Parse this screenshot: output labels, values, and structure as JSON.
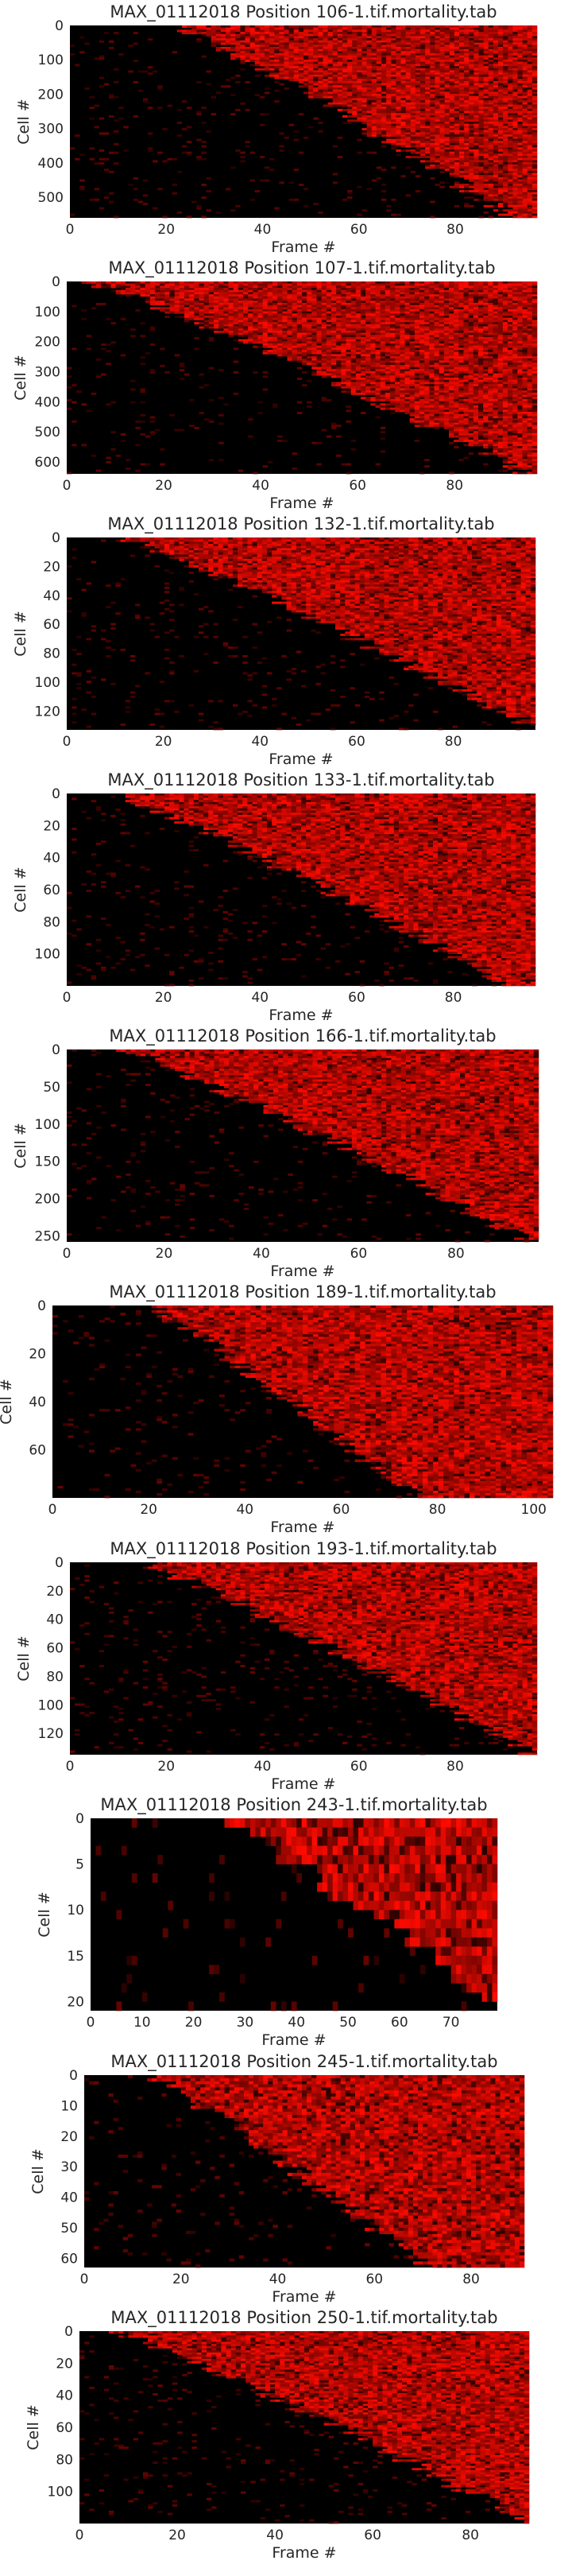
{
  "chart_data": [
    {
      "type": "heatmap",
      "title": "MAX_01112018 Position 106-1.tif.mortality.tab",
      "xlabel": "Frame #",
      "ylabel": "Cell #",
      "xlim": [
        0,
        97
      ],
      "ylim": [
        0,
        560
      ],
      "xticks": [
        0,
        20,
        40,
        60,
        80
      ],
      "yticks": [
        0,
        100,
        200,
        300,
        400,
        500
      ],
      "colorscale": [
        "#000000",
        "#ff0000"
      ],
      "grid": false,
      "onset_frames": [
        22,
        92
      ],
      "xtick_labels": [
        "0",
        "20",
        "40",
        "60",
        "80"
      ],
      "ytick_labels": [
        "0",
        "100",
        "200",
        "300",
        "400",
        "500"
      ]
    },
    {
      "type": "heatmap",
      "title": "MAX_01112018 Position 107-1.tif.mortality.tab",
      "xlabel": "Frame #",
      "ylabel": "Cell #",
      "xlim": [
        0,
        97
      ],
      "ylim": [
        0,
        640
      ],
      "xticks": [
        0,
        20,
        40,
        60,
        80
      ],
      "yticks": [
        0,
        100,
        200,
        300,
        400,
        500,
        600
      ],
      "colorscale": [
        "#000000",
        "#ff0000"
      ],
      "grid": false,
      "onset_frames": [
        5,
        95
      ],
      "xtick_labels": [
        "0",
        "20",
        "40",
        "60",
        "80"
      ],
      "ytick_labels": [
        "0",
        "100",
        "200",
        "300",
        "400",
        "500",
        "600"
      ]
    },
    {
      "type": "heatmap",
      "title": "MAX_01112018 Position 132-1.tif.mortality.tab",
      "xlabel": "Frame #",
      "ylabel": "Cell #",
      "xlim": [
        0,
        97
      ],
      "ylim": [
        0,
        133
      ],
      "xticks": [
        0,
        20,
        40,
        60,
        80
      ],
      "yticks": [
        0,
        20,
        40,
        60,
        80,
        100,
        120
      ],
      "colorscale": [
        "#000000",
        "#ff0000"
      ],
      "grid": false,
      "onset_frames": [
        12,
        97
      ],
      "xtick_labels": [
        "0",
        "20",
        "40",
        "60",
        "80"
      ],
      "ytick_labels": [
        "0",
        "20",
        "40",
        "60",
        "80",
        "100",
        "120"
      ]
    },
    {
      "type": "heatmap",
      "title": "MAX_01112018 Position 133-1.tif.mortality.tab",
      "xlabel": "Frame #",
      "ylabel": "Cell #",
      "xlim": [
        0,
        97
      ],
      "ylim": [
        0,
        120
      ],
      "xticks": [
        0,
        20,
        40,
        60,
        80
      ],
      "yticks": [
        0,
        20,
        40,
        60,
        80,
        100
      ],
      "colorscale": [
        "#000000",
        "#ff0000"
      ],
      "grid": false,
      "onset_frames": [
        10,
        92
      ],
      "xtick_labels": [
        "0",
        "20",
        "40",
        "60",
        "80"
      ],
      "ytick_labels": [
        "0",
        "20",
        "40",
        "60",
        "80",
        "100"
      ]
    },
    {
      "type": "heatmap",
      "title": "MAX_01112018 Position 166-1.tif.mortality.tab",
      "xlabel": "Frame #",
      "ylabel": "Cell #",
      "xlim": [
        0,
        97
      ],
      "ylim": [
        0,
        258
      ],
      "xticks": [
        0,
        20,
        40,
        60,
        80
      ],
      "yticks": [
        0,
        50,
        100,
        150,
        200,
        250
      ],
      "colorscale": [
        "#000000",
        "#ff0000"
      ],
      "grid": false,
      "onset_frames": [
        12,
        95
      ],
      "xtick_labels": [
        "0",
        "20",
        "40",
        "60",
        "80"
      ],
      "ytick_labels": [
        "0",
        "50",
        "100",
        "150",
        "200",
        "250"
      ]
    },
    {
      "type": "heatmap",
      "title": "MAX_01112018 Position 189-1.tif.mortality.tab",
      "xlabel": "Frame #",
      "ylabel": "Cell #",
      "xlim": [
        0,
        104
      ],
      "ylim": [
        0,
        80
      ],
      "xticks": [
        0,
        20,
        40,
        60,
        80,
        100
      ],
      "yticks": [
        0,
        20,
        40,
        60
      ],
      "colorscale": [
        "#000000",
        "#ff0000"
      ],
      "grid": false,
      "onset_frames": [
        20,
        75
      ],
      "xtick_labels": [
        "0",
        "20",
        "40",
        "60",
        "80",
        "100"
      ],
      "ytick_labels": [
        "0",
        "20",
        "40",
        "60"
      ]
    },
    {
      "type": "heatmap",
      "title": "MAX_01112018 Position 193-1.tif.mortality.tab",
      "xlabel": "Frame #",
      "ylabel": "Cell #",
      "xlim": [
        0,
        97
      ],
      "ylim": [
        0,
        135
      ],
      "xticks": [
        0,
        20,
        40,
        60,
        80
      ],
      "yticks": [
        0,
        20,
        40,
        60,
        80,
        100,
        120
      ],
      "colorscale": [
        "#000000",
        "#ff0000"
      ],
      "grid": false,
      "onset_frames": [
        15,
        96
      ],
      "xtick_labels": [
        "0",
        "20",
        "40",
        "60",
        "80"
      ],
      "ytick_labels": [
        "0",
        "20",
        "40",
        "60",
        "80",
        "100",
        "120"
      ]
    },
    {
      "type": "heatmap",
      "title": "MAX_01112018 Position 243-1.tif.mortality.tab",
      "xlabel": "Frame #",
      "ylabel": "Cell #",
      "xlim": [
        0,
        79
      ],
      "ylim": [
        0,
        21
      ],
      "xticks": [
        0,
        10,
        20,
        30,
        40,
        50,
        60,
        70
      ],
      "yticks": [
        0,
        5,
        10,
        15,
        20
      ],
      "colorscale": [
        "#000000",
        "#ff0000"
      ],
      "grid": false,
      "onset_frames": [
        27,
        78
      ],
      "xtick_labels": [
        "0",
        "10",
        "20",
        "30",
        "40",
        "50",
        "60",
        "70"
      ],
      "ytick_labels": [
        "0",
        "5",
        "10",
        "15",
        "20"
      ]
    },
    {
      "type": "heatmap",
      "title": "MAX_01112018 Position 245-1.tif.mortality.tab",
      "xlabel": "Frame #",
      "ylabel": "Cell #",
      "xlim": [
        0,
        91
      ],
      "ylim": [
        0,
        63
      ],
      "xticks": [
        0,
        20,
        40,
        60,
        80
      ],
      "yticks": [
        0,
        10,
        20,
        30,
        40,
        50,
        60
      ],
      "colorscale": [
        "#000000",
        "#ff0000"
      ],
      "grid": false,
      "onset_frames": [
        14,
        70
      ],
      "xtick_labels": [
        "0",
        "20",
        "40",
        "60",
        "80"
      ],
      "ytick_labels": [
        "0",
        "10",
        "20",
        "30",
        "40",
        "50",
        "60"
      ]
    },
    {
      "type": "heatmap",
      "title": "MAX_01112018 Position 250-1.tif.mortality.tab",
      "xlabel": "Frame #",
      "ylabel": "Cell #",
      "xlim": [
        0,
        92
      ],
      "ylim": [
        0,
        120
      ],
      "xticks": [
        0,
        20,
        40,
        60,
        80
      ],
      "yticks": [
        0,
        20,
        40,
        60,
        80,
        100
      ],
      "colorscale": [
        "#000000",
        "#ff0000"
      ],
      "grid": false,
      "onset_frames": [
        8,
        92
      ],
      "xtick_labels": [
        "0",
        "20",
        "40",
        "60",
        "80"
      ],
      "ytick_labels": [
        "0",
        "20",
        "40",
        "60",
        "80",
        "100"
      ]
    }
  ]
}
